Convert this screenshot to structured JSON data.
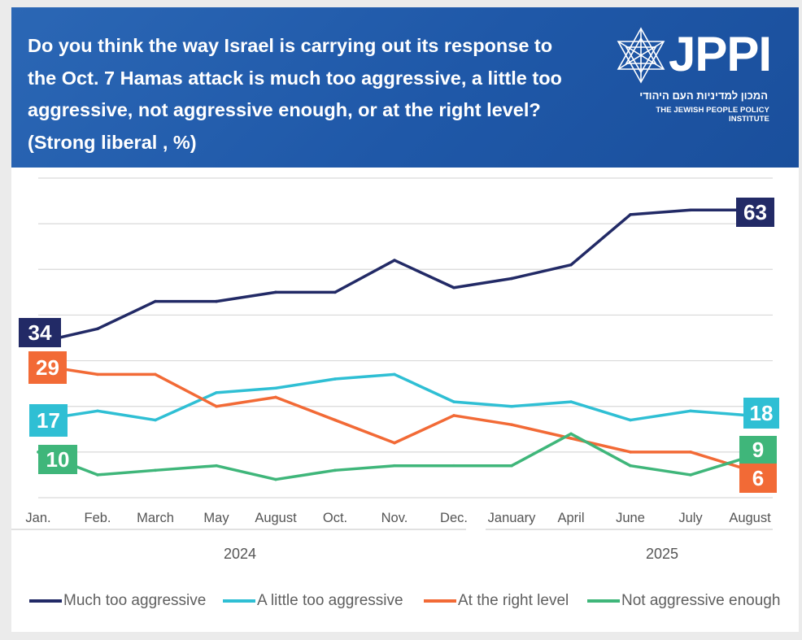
{
  "header": {
    "title": "Do you think the way Israel is carrying out its response to the Oct. 7 Hamas attack is much too aggressive, a little too aggressive, not aggressive enough, or at the right level? (Strong liberal , %)",
    "logo_text": "JPPI",
    "logo_hebrew": "המכון למדיניות העם היהודי",
    "logo_subtitle": "THE JEWISH PEOPLE POLICY INSTITUTE"
  },
  "chart_data": {
    "type": "line",
    "title": "Do you think the way Israel is carrying out its response to the Oct. 7 Hamas attack is much too aggressive, a little too aggressive, not aggressive enough, or at the right level? (Strong liberal , %)",
    "categories": [
      "Jan.",
      "Feb.",
      "March",
      "May",
      "August",
      "Oct.",
      "Nov.",
      "Dec.",
      "January",
      "April",
      "June",
      "July",
      "August"
    ],
    "year_groups": [
      {
        "label": "2024",
        "from": 0,
        "to": 7
      },
      {
        "label": "2025",
        "from": 8,
        "to": 12
      }
    ],
    "ylim": [
      0,
      70
    ],
    "grid": "horizontal",
    "legend_position": "bottom",
    "series": [
      {
        "name": "Much too aggressive",
        "color": "#222a66",
        "values": [
          34,
          37,
          43,
          43,
          45,
          45,
          52,
          46,
          48,
          51,
          62,
          63,
          63
        ],
        "end_labels": [
          "34",
          "63"
        ]
      },
      {
        "name": "A little too aggressive",
        "color": "#2fbfd4",
        "values": [
          17,
          19,
          17,
          23,
          24,
          26,
          27,
          21,
          20,
          21,
          17,
          19,
          18
        ],
        "end_labels": [
          "17",
          "18"
        ]
      },
      {
        "name": "At the right level",
        "color": "#f26a36",
        "values": [
          29,
          27,
          27,
          20,
          22,
          17,
          12,
          18,
          16,
          13,
          10,
          10,
          6
        ],
        "end_labels": [
          "29",
          "6"
        ]
      },
      {
        "name": "Not aggressive enough",
        "color": "#3fb67a",
        "values": [
          10,
          5,
          6,
          7,
          4,
          6,
          7,
          7,
          7,
          14,
          7,
          5,
          9
        ],
        "end_labels": [
          "10",
          "9"
        ]
      }
    ]
  }
}
